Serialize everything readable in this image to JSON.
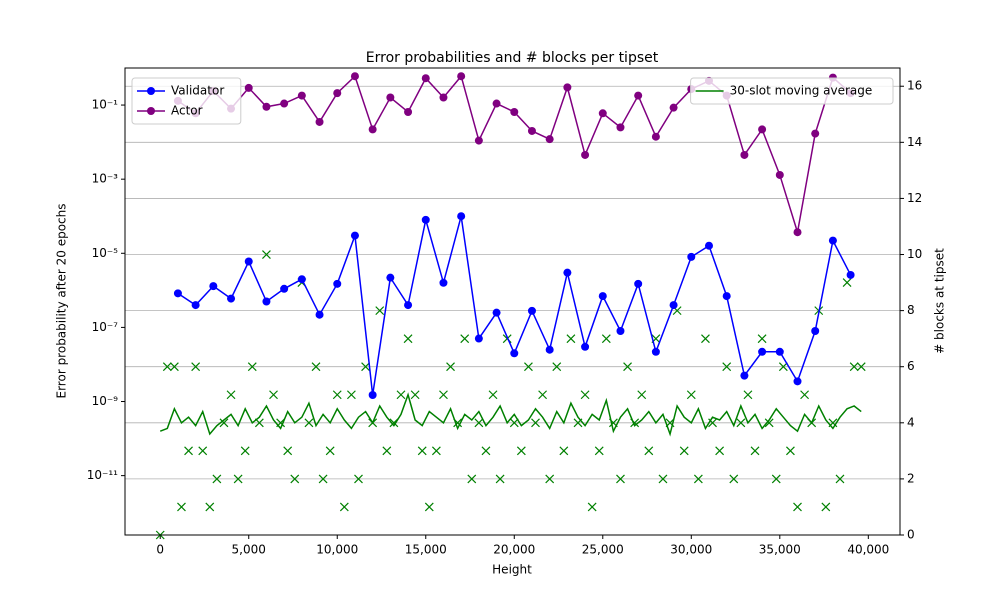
{
  "chart_data": {
    "type": "line",
    "title": "Error probabilities and # blocks per tipset",
    "x_label": "Height",
    "y_label": "Error probability after 20 epochs",
    "y2_label": "# blocks at tipset",
    "y_label_color": "#0000ff",
    "y2_label_color": "#008000",
    "xlim": [
      -1990,
      41790
    ],
    "xticks": [
      0,
      {
        "value": 5000,
        "label": "5,000"
      },
      {
        "value": 10000,
        "label": "10,000"
      },
      {
        "value": 15000,
        "label": "15,000"
      },
      {
        "value": 20000,
        "label": "20,000"
      },
      {
        "value": 25000,
        "label": "25,000"
      },
      {
        "value": 30000,
        "label": "30,000"
      },
      {
        "value": 35000,
        "label": "35,000"
      },
      {
        "value": 40000,
        "label": "40,000"
      }
    ],
    "ylim": [
      2.5e-13,
      1
    ],
    "y_log": true,
    "yticks": [
      {
        "value": 0.1,
        "label": "10⁻¹"
      },
      {
        "value": 0.001,
        "label": "10⁻³"
      },
      {
        "value": 1e-05,
        "label": "10⁻⁵"
      },
      {
        "value": 1e-07,
        "label": "10⁻⁷"
      },
      {
        "value": 1e-09,
        "label": "10⁻⁹"
      },
      {
        "value": 1e-11,
        "label": "10⁻¹¹"
      }
    ],
    "y2lim": [
      0,
      16.65
    ],
    "y2ticks": [
      0,
      2,
      4,
      6,
      8,
      10,
      12,
      14,
      16
    ],
    "grid": "y2",
    "legend": "upper left",
    "legend2": "upper right",
    "series": [
      {
        "name": "Validator",
        "color": "#0000ff",
        "marker": "o",
        "axis": "y",
        "x": [
          1000,
          2000,
          3000,
          4000,
          5000,
          6000,
          7000,
          8000,
          9000,
          10000,
          11000,
          12000,
          13000,
          14000,
          15000,
          16000,
          17000,
          18000,
          19000,
          20000,
          21000,
          22000,
          23000,
          24000,
          25000,
          26000,
          27000,
          28000,
          29000,
          30000,
          31000,
          32000,
          33000,
          34000,
          35000,
          36000,
          37000,
          38000,
          39000
        ],
        "values": [
          8.3e-07,
          4e-07,
          1.3e-06,
          6e-07,
          6e-06,
          5e-07,
          1.1e-06,
          2e-06,
          2.2e-07,
          1.5e-06,
          3e-05,
          1.5e-09,
          2.2e-06,
          4e-07,
          8e-05,
          1.6e-06,
          0.0001,
          5e-08,
          2.5e-07,
          2e-08,
          2.8e-07,
          2.5e-08,
          3e-06,
          3e-08,
          7e-07,
          8e-08,
          1.5e-06,
          2.2e-08,
          4e-07,
          8e-06,
          1.6e-05,
          7e-07,
          5e-09,
          2.2e-08,
          2.2e-08,
          3.5e-09,
          8e-08,
          2.2e-05,
          2.6e-06
        ]
      },
      {
        "name": "Actor",
        "color": "#800080",
        "marker": "o",
        "axis": "y",
        "x": [
          1000,
          2000,
          3000,
          4000,
          5000,
          6000,
          7000,
          8000,
          9000,
          10000,
          11000,
          12000,
          13000,
          14000,
          15000,
          16000,
          17000,
          18000,
          19000,
          20000,
          21000,
          22000,
          23000,
          24000,
          25000,
          26000,
          27000,
          28000,
          29000,
          30000,
          31000,
          32000,
          33000,
          34000,
          35000,
          36000,
          37000,
          38000,
          39000
        ],
        "values": [
          0.13,
          0.06,
          0.24,
          0.08,
          0.29,
          0.09,
          0.11,
          0.18,
          0.035,
          0.21,
          0.6,
          0.022,
          0.16,
          0.065,
          0.53,
          0.16,
          0.6,
          0.011,
          0.11,
          0.065,
          0.02,
          0.012,
          0.3,
          0.0045,
          0.06,
          0.025,
          0.18,
          0.014,
          0.085,
          0.27,
          0.45,
          0.18,
          0.0045,
          0.022,
          0.0013,
          3.7e-05,
          0.017,
          0.55,
          0.21
        ]
      },
      {
        "name": "30-slot moving average",
        "color": "#008000",
        "axis": "y2",
        "x": [
          0,
          400,
          800,
          1200,
          1600,
          2000,
          2400,
          2800,
          3200,
          3600,
          4000,
          4400,
          4800,
          5200,
          5600,
          6000,
          6400,
          6800,
          7200,
          7600,
          8000,
          8400,
          8800,
          9200,
          9600,
          10000,
          10400,
          10800,
          11200,
          11600,
          12000,
          12400,
          12800,
          13200,
          13600,
          14000,
          14400,
          14800,
          15200,
          15600,
          16000,
          16400,
          16800,
          17200,
          17600,
          18000,
          18400,
          18800,
          19200,
          19600,
          20000,
          20400,
          20800,
          21200,
          21600,
          22000,
          22400,
          22800,
          23200,
          23600,
          24000,
          24400,
          24800,
          25200,
          25600,
          26000,
          26400,
          26800,
          27200,
          27600,
          28000,
          28400,
          28800,
          29200,
          29600,
          30000,
          30400,
          30800,
          31200,
          31600,
          32000,
          32400,
          32800,
          33200,
          33600,
          34000,
          34400,
          34800,
          35200,
          35600,
          36000,
          36400,
          36800,
          37200,
          37600,
          38000,
          38400,
          38800,
          39200,
          39600
        ],
        "values": [
          3.7,
          3.8,
          4.5,
          4.0,
          4.2,
          3.9,
          4.4,
          3.6,
          3.9,
          4.1,
          4.3,
          3.9,
          4.5,
          4.0,
          4.2,
          4.6,
          4.1,
          3.8,
          4.4,
          4.0,
          4.2,
          4.7,
          3.9,
          4.3,
          4.0,
          4.5,
          4.1,
          3.8,
          4.2,
          4.4,
          4.0,
          4.6,
          4.2,
          3.9,
          4.3,
          5.0,
          4.1,
          3.9,
          4.4,
          4.2,
          4.0,
          4.5,
          3.8,
          4.3,
          4.1,
          4.4,
          3.9,
          4.2,
          4.6,
          4.0,
          4.3,
          3.9,
          4.1,
          4.5,
          4.2,
          3.8,
          4.4,
          4.0,
          4.7,
          4.2,
          3.9,
          4.3,
          4.1,
          4.8,
          3.7,
          4.2,
          4.5,
          3.9,
          4.1,
          4.4,
          4.0,
          4.3,
          3.6,
          4.6,
          4.2,
          4.0,
          4.5,
          3.8,
          4.2,
          4.1,
          4.4,
          3.9,
          4.6,
          4.0,
          4.3,
          3.8,
          4.1,
          4.5,
          4.2,
          3.9,
          3.7,
          4.3,
          4.0,
          4.6,
          4.1,
          3.8,
          4.2,
          4.5,
          4.6,
          4.4
        ]
      }
    ],
    "blocks": {
      "color": "#008000",
      "marker": "x",
      "axis": "y2",
      "x": [
        0,
        400,
        800,
        1200,
        1600,
        2000,
        2400,
        2800,
        3200,
        3600,
        4000,
        4400,
        4800,
        5200,
        5600,
        6000,
        6400,
        6800,
        7200,
        7600,
        8000,
        8400,
        8800,
        9200,
        9600,
        10000,
        10400,
        10800,
        11200,
        11600,
        12000,
        12400,
        12800,
        13200,
        13600,
        14000,
        14400,
        14800,
        15200,
        15600,
        16000,
        16400,
        16800,
        17200,
        17600,
        18000,
        18400,
        18800,
        19200,
        19600,
        20000,
        20400,
        20800,
        21200,
        21600,
        22000,
        22400,
        22800,
        23200,
        23600,
        24000,
        24400,
        24800,
        25200,
        25600,
        26000,
        26400,
        26800,
        27200,
        27600,
        28000,
        28400,
        28800,
        29200,
        29600,
        30000,
        30400,
        30800,
        31200,
        31600,
        32000,
        32400,
        32800,
        33200,
        33600,
        34000,
        34400,
        34800,
        35200,
        35600,
        36000,
        36400,
        36800,
        37200,
        37600,
        38000,
        38400,
        38800,
        39200,
        39600
      ],
      "values": [
        0,
        6,
        6,
        1,
        3,
        6,
        3,
        1,
        2,
        4,
        5,
        2,
        3,
        6,
        4,
        10,
        5,
        4,
        3,
        2,
        9,
        4,
        6,
        2,
        3,
        5,
        1,
        5,
        2,
        6,
        4,
        8,
        3,
        4,
        5,
        7,
        5,
        3,
        1,
        3,
        5,
        6,
        4,
        7,
        2,
        4,
        3,
        5,
        2,
        7,
        4,
        3,
        6,
        4,
        5,
        2,
        6,
        3,
        7,
        4,
        5,
        1,
        3,
        7,
        4,
        2,
        6,
        4,
        5,
        3,
        7,
        2,
        4,
        8,
        3,
        5,
        2,
        7,
        4,
        3,
        6,
        2,
        4,
        5,
        3,
        7,
        4,
        2,
        6,
        3,
        1,
        5,
        4,
        8,
        1,
        4,
        2,
        9,
        6,
        6
      ]
    }
  }
}
